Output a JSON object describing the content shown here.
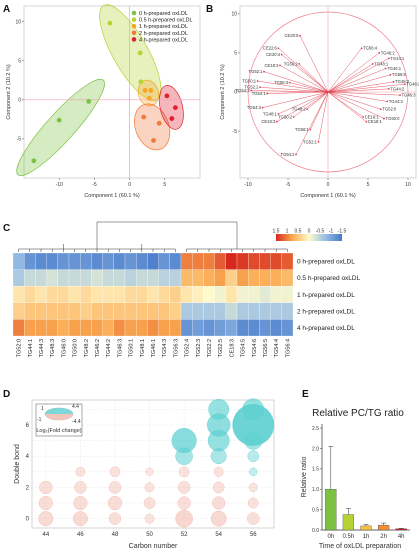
{
  "panel_letters": {
    "a": "A",
    "b": "B",
    "c": "C",
    "d": "D",
    "e": "E"
  },
  "colors": {
    "groups": [
      "#7cc242",
      "#b5d334",
      "#f5a623",
      "#f07a3c",
      "#e0202e"
    ],
    "vector": "#e0404e",
    "bubble_up": "#5ccfd0",
    "bubble_down": "#f2b6aa",
    "bar_colors": [
      "#7cc242",
      "#b5d334",
      "#f5c242",
      "#f08f3a",
      "#e0202e"
    ]
  },
  "chart_data": [
    {
      "type": "scatter",
      "panel": "A",
      "xlabel": "Component 1  (60.1 %)",
      "ylabel": "Component 2  (10.2 %)",
      "xlim": [
        -15,
        10
      ],
      "ylim": [
        -10,
        12
      ],
      "xticks": [
        -10,
        -5,
        0,
        5
      ],
      "yticks": [
        -5,
        0,
        5,
        10
      ],
      "legend_position": "top-right",
      "series": [
        {
          "name": "0 h-prepared oxLDL",
          "points": [
            [
              -13.6,
              -7.8
            ],
            [
              -10,
              -2.6
            ],
            [
              -5.8,
              -0.2
            ]
          ]
        },
        {
          "name": "0.5 h-prepared oxLDL",
          "points": [
            [
              -2.8,
              9.8
            ],
            [
              1.5,
              6.0
            ],
            [
              1.6,
              2.3
            ]
          ]
        },
        {
          "name": "1 h-prepared oxLDL",
          "points": [
            [
              2.2,
              1.2
            ],
            [
              3.0,
              1.2
            ],
            [
              2.8,
              0.2
            ]
          ]
        },
        {
          "name": "2 h-prepared oxLDL",
          "points": [
            [
              2.0,
              -2.2
            ],
            [
              3.4,
              -5.2
            ],
            [
              4.2,
              -3.0
            ]
          ]
        },
        {
          "name": "4 h-prepared oxLDL",
          "points": [
            [
              5.3,
              0.5
            ],
            [
              6.5,
              -1.0
            ],
            [
              6.0,
              -2.4
            ]
          ]
        }
      ]
    },
    {
      "type": "scatter",
      "panel": "B",
      "xlabel": "Component 1  (60.1 %)",
      "ylabel": "Component 2  (10.2 %)",
      "xlim": [
        -11,
        11
      ],
      "ylim": [
        -11,
        11
      ],
      "xticks": [
        -10,
        -5,
        0,
        5,
        10
      ],
      "yticks": [
        -5,
        0,
        5,
        10
      ],
      "vectors": [
        {
          "label": "CE20:5",
          "x": -3.5,
          "y": 7.2
        },
        {
          "label": "CE22:6",
          "x": -6.2,
          "y": 5.6
        },
        {
          "label": "CE20:4",
          "x": -5.8,
          "y": 4.8
        },
        {
          "label": "CE18:2",
          "x": -6.0,
          "y": 3.4
        },
        {
          "label": "TG52:1",
          "x": -8.0,
          "y": 2.6
        },
        {
          "label": "TG50:1",
          "x": -8.8,
          "y": 1.4
        },
        {
          "label": "TG52:2",
          "x": -8.5,
          "y": 0.6
        },
        {
          "label": "TG54:1",
          "x": -7.6,
          "y": -0.2
        },
        {
          "label": "TG54:2",
          "x": -9.6,
          "y": 0.2
        },
        {
          "label": "TG56:3",
          "x": -4.8,
          "y": 1.2
        },
        {
          "label": "TG56:2",
          "x": -3.6,
          "y": 3.6
        },
        {
          "label": "TG54:3",
          "x": -8.2,
          "y": -2.0
        },
        {
          "label": "CE18:3",
          "x": -6.4,
          "y": -3.8
        },
        {
          "label": "TG50:2",
          "x": -4.3,
          "y": -3.2
        },
        {
          "label": "TG48:1",
          "x": -6.2,
          "y": -2.8
        },
        {
          "label": "TG48:2",
          "x": -2.6,
          "y": -2.2
        },
        {
          "label": "TG56:1",
          "x": -2.2,
          "y": -4.8
        },
        {
          "label": "TG52:1",
          "x": -1.2,
          "y": -6.4
        },
        {
          "label": "TG54:2",
          "x": -4.0,
          "y": -8.0
        },
        {
          "label": "TG56:4",
          "x": 4.2,
          "y": 5.6
        },
        {
          "label": "TG46:2",
          "x": 6.4,
          "y": 5.0
        },
        {
          "label": "TG44:1",
          "x": 7.6,
          "y": 4.3
        },
        {
          "label": "TG48:1",
          "x": 5.6,
          "y": 3.6
        },
        {
          "label": "TG46:1",
          "x": 7.2,
          "y": 3.0
        },
        {
          "label": "TG56:5",
          "x": 7.8,
          "y": 2.2
        },
        {
          "label": "TG48:3",
          "x": 8.2,
          "y": 1.3
        },
        {
          "label": "TG44:2",
          "x": 7.6,
          "y": 0.4
        },
        {
          "label": "TG44:3",
          "x": 7.4,
          "y": -1.2
        },
        {
          "label": "TG48:2",
          "x": 9.6,
          "y": 1.0
        },
        {
          "label": "TG46:3",
          "x": 9.0,
          "y": -0.4
        },
        {
          "label": "TG52:0",
          "x": 6.6,
          "y": -2.2
        },
        {
          "label": "TG50:0",
          "x": 7.0,
          "y": -3.4
        },
        {
          "label": "CE16:1",
          "x": 4.4,
          "y": -3.2
        },
        {
          "label": "CE18:1",
          "x": 4.8,
          "y": -3.8
        }
      ]
    },
    {
      "type": "heatmap",
      "panel": "C",
      "colorbar_ticks": [
        "1.5",
        "1",
        "0.5",
        "0",
        "-0.5",
        "-1",
        "-1.5"
      ],
      "rows": [
        "0 h-prepared oxLDL",
        "0.5 h-prepared oxLDL",
        "1 h-prepared oxLDL",
        "2 h-prepared oxLDL",
        "4 h-prepared oxLDL"
      ],
      "columns": [
        "TG52:0",
        "TG44:1",
        "TG44:3",
        "TG48:3",
        "TG46:0",
        "TG50:0",
        "TG48:2",
        "TG46:2",
        "TG44:2",
        "TG46:3",
        "TG50:1",
        "TG48:1",
        "TG46:1",
        "TG54:3",
        "TG56:3",
        "TG52:4",
        "TG52:3",
        "TG52:2",
        "TG52:5",
        "CE18:3",
        "TG54:5",
        "TG54:6",
        "TG56:5",
        "TG54:4",
        "TG56:4"
      ],
      "values": [
        [
          -0.8,
          -1.2,
          -1.3,
          -1.3,
          -1.2,
          -1.2,
          -1.2,
          -1.3,
          -1.2,
          -1.3,
          -1.2,
          -1.3,
          -1.4,
          -1.2,
          -1.3,
          1.0,
          1.0,
          1.0,
          1.2,
          1.8,
          1.4,
          1.3,
          1.3,
          1.3,
          1.2
        ],
        [
          -0.6,
          -0.4,
          -0.4,
          -0.3,
          -0.4,
          -0.4,
          -0.4,
          -0.3,
          -0.4,
          -0.4,
          -0.5,
          -0.4,
          -0.4,
          -0.5,
          -0.5,
          0.6,
          0.6,
          0.7,
          0.8,
          0.4,
          0.8,
          0.7,
          0.7,
          0.7,
          0.6
        ],
        [
          0.2,
          0.3,
          0.2,
          0.3,
          0.3,
          0.2,
          0.3,
          0.2,
          0.2,
          0.2,
          0.3,
          0.3,
          0.2,
          0.3,
          0.4,
          0.2,
          0.1,
          0.0,
          -0.1,
          0.2,
          -0.1,
          -0.1,
          -0.2,
          -0.1,
          -0.1
        ],
        [
          0.4,
          0.5,
          0.5,
          0.5,
          0.5,
          0.5,
          0.4,
          0.5,
          0.5,
          0.5,
          0.5,
          0.5,
          0.5,
          0.5,
          0.4,
          -0.6,
          -0.6,
          -0.6,
          -0.6,
          -0.4,
          -0.6,
          -0.6,
          -0.6,
          -0.6,
          -0.6
        ],
        [
          1.0,
          0.8,
          0.8,
          0.8,
          0.7,
          0.8,
          0.8,
          0.8,
          0.7,
          0.9,
          0.8,
          0.8,
          0.9,
          0.8,
          0.8,
          -1.2,
          -1.1,
          -1.2,
          -1.1,
          -1.0,
          -1.3,
          -1.3,
          -1.2,
          -1.3,
          -1.2
        ]
      ]
    },
    {
      "type": "scatter",
      "panel": "D",
      "xlabel": "Carbon number",
      "ylabel": "Double bond",
      "xticks": [
        44,
        46,
        48,
        50,
        52,
        54,
        56
      ],
      "yticks": [
        0,
        2,
        4,
        6
      ],
      "xlim": [
        43.2,
        57.2
      ],
      "ylim": [
        -0.6,
        7.6
      ],
      "legend_title": "Log₂(Fold change)",
      "legend_values": [
        "4.4",
        "-4.4"
      ],
      "legend_ticks": [
        "1",
        "-1"
      ],
      "points": [
        {
          "x": 44,
          "y": 0,
          "v": -1.2
        },
        {
          "x": 44,
          "y": 1,
          "v": -1.1
        },
        {
          "x": 44,
          "y": 2,
          "v": -1.0
        },
        {
          "x": 46,
          "y": 0,
          "v": -1.2
        },
        {
          "x": 46,
          "y": 1,
          "v": -1.1
        },
        {
          "x": 46,
          "y": 2,
          "v": -0.9
        },
        {
          "x": 46,
          "y": 3,
          "v": -0.6
        },
        {
          "x": 48,
          "y": 0,
          "v": -0.9
        },
        {
          "x": 48,
          "y": 1,
          "v": -1.1
        },
        {
          "x": 48,
          "y": 2,
          "v": -0.9
        },
        {
          "x": 48,
          "y": 3,
          "v": -0.7
        },
        {
          "x": 50,
          "y": 0,
          "v": -0.6
        },
        {
          "x": 50,
          "y": 1,
          "v": -0.8
        },
        {
          "x": 50,
          "y": 2,
          "v": -0.6
        },
        {
          "x": 50,
          "y": 3,
          "v": -0.4
        },
        {
          "x": 52,
          "y": 0,
          "v": -1.5
        },
        {
          "x": 52,
          "y": 1,
          "v": -1.0
        },
        {
          "x": 52,
          "y": 2,
          "v": -0.9
        },
        {
          "x": 52,
          "y": 3,
          "v": -0.7
        },
        {
          "x": 52,
          "y": 4,
          "v": 1.5
        },
        {
          "x": 52,
          "y": 5,
          "v": 2.4
        },
        {
          "x": 54,
          "y": 0,
          "v": -1.3
        },
        {
          "x": 54,
          "y": 1,
          "v": -1.0
        },
        {
          "x": 54,
          "y": 2,
          "v": -0.8
        },
        {
          "x": 54,
          "y": 3,
          "v": -0.6
        },
        {
          "x": 54,
          "y": 4,
          "v": 1.3
        },
        {
          "x": 54,
          "y": 5,
          "v": 2.0
        },
        {
          "x": 54,
          "y": 6,
          "v": 2.2
        },
        {
          "x": 54,
          "y": 7,
          "v": 1.9
        },
        {
          "x": 56,
          "y": 0,
          "v": -0.9
        },
        {
          "x": 56,
          "y": 1,
          "v": -0.7
        },
        {
          "x": 56,
          "y": 2,
          "v": -0.5
        },
        {
          "x": 56,
          "y": 3,
          "v": 0.4
        },
        {
          "x": 56,
          "y": 4,
          "v": 0.8
        },
        {
          "x": 56,
          "y": 5,
          "v": 1.6
        },
        {
          "x": 56,
          "y": 6,
          "v": 4.4
        },
        {
          "x": 56,
          "y": 7,
          "v": 2.0
        }
      ]
    },
    {
      "type": "bar",
      "panel": "E",
      "title": "Relative PC/TG ratio",
      "xlabel": "Time of oxLDL preparation",
      "ylabel": "Relative ratio",
      "categories": [
        "0h",
        "0.5h",
        "1h",
        "2h",
        "4h"
      ],
      "values": [
        1.0,
        0.38,
        0.1,
        0.12,
        0.03
      ],
      "errors": [
        1.05,
        0.15,
        0.04,
        0.05,
        0.01
      ],
      "ylim": [
        0,
        2.6
      ],
      "yticks": [
        "0.0",
        "0.5",
        "1.0",
        "1.5",
        "2.0",
        "2.5"
      ]
    }
  ]
}
